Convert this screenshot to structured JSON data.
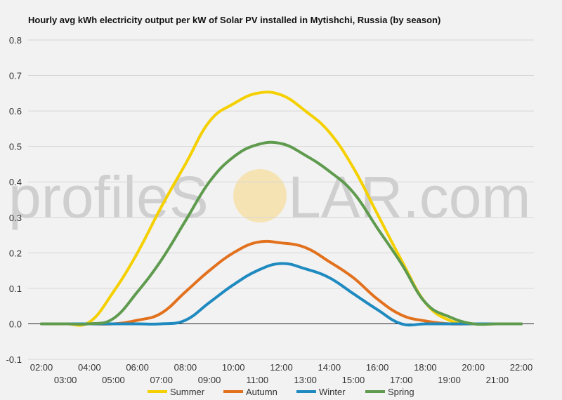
{
  "watermark": {
    "left": "profileS",
    "right": "LAR.com"
  },
  "chart_data": {
    "type": "line",
    "title": "Hourly avg kWh electricity output per kW of Solar PV installed in Mytishchi, Russia (by season)",
    "xlabel": "",
    "ylabel": "",
    "ylim": [
      -0.1,
      0.8
    ],
    "yticks": [
      "-0.1",
      "0.0",
      "0.1",
      "0.2",
      "0.3",
      "0.4",
      "0.5",
      "0.6",
      "0.7",
      "0.8"
    ],
    "x": [
      "02:00",
      "03:00",
      "04:00",
      "05:00",
      "06:00",
      "07:00",
      "08:00",
      "09:00",
      "10:00",
      "11:00",
      "12:00",
      "13:00",
      "14:00",
      "15:00",
      "16:00",
      "17:00",
      "18:00",
      "19:00",
      "20:00",
      "21:00",
      "22:00"
    ],
    "grid": true,
    "legend": "bottom",
    "series": [
      {
        "name": "Summer",
        "color": "#f5d000",
        "values": [
          0.0,
          0.0,
          0.005,
          0.09,
          0.2,
          0.33,
          0.45,
          0.57,
          0.62,
          0.65,
          0.645,
          0.6,
          0.54,
          0.44,
          0.31,
          0.18,
          0.06,
          0.01,
          0.0,
          0.0,
          0.0
        ]
      },
      {
        "name": "Autumn",
        "color": "#e2711d",
        "values": [
          0.0,
          0.0,
          0.0,
          0.0,
          0.01,
          0.03,
          0.09,
          0.15,
          0.2,
          0.23,
          0.228,
          0.215,
          0.175,
          0.13,
          0.07,
          0.025,
          0.008,
          0.0,
          0.0,
          0.0,
          0.0
        ]
      },
      {
        "name": "Winter",
        "color": "#1f8ac0",
        "values": [
          0.0,
          0.0,
          0.0,
          0.0,
          0.0,
          0.0,
          0.01,
          0.06,
          0.11,
          0.15,
          0.17,
          0.155,
          0.13,
          0.085,
          0.04,
          0.0,
          0.0,
          0.0,
          0.0,
          0.0,
          0.0
        ]
      },
      {
        "name": "Spring",
        "color": "#5f9b4e",
        "values": [
          0.0,
          0.0,
          0.0,
          0.015,
          0.09,
          0.18,
          0.29,
          0.4,
          0.47,
          0.505,
          0.508,
          0.475,
          0.43,
          0.37,
          0.27,
          0.17,
          0.06,
          0.02,
          0.0,
          0.0,
          0.0
        ]
      }
    ]
  }
}
